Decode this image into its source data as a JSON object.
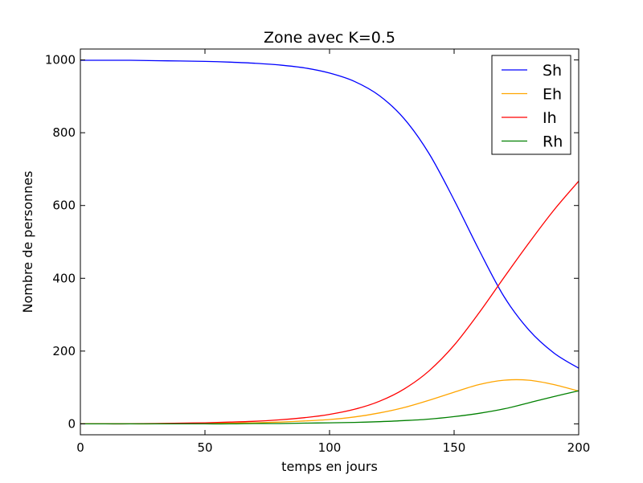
{
  "chart_data": {
    "type": "line",
    "title": "Zone avec K=0.5",
    "xlabel": "temps en jours",
    "ylabel": "Nombre de personnes",
    "xlim": [
      0,
      200
    ],
    "ylim": [
      -30,
      1030
    ],
    "xticks": [
      0,
      50,
      100,
      150,
      200
    ],
    "yticks": [
      0,
      200,
      400,
      600,
      800,
      1000
    ],
    "grid": false,
    "legend_position": "top-right",
    "x": [
      0,
      10,
      20,
      30,
      40,
      50,
      60,
      70,
      80,
      90,
      100,
      110,
      120,
      130,
      140,
      150,
      160,
      170,
      180,
      190,
      200
    ],
    "series": [
      {
        "name": "Sh",
        "color": "#0000ff",
        "values": [
          999,
          999,
          999,
          998,
          997,
          996,
          994,
          991,
          986,
          978,
          964,
          941,
          902,
          838,
          742,
          615,
          478,
          350,
          258,
          195,
          153
        ]
      },
      {
        "name": "Eh",
        "color": "#ffa500",
        "values": [
          0,
          0,
          0,
          0,
          1,
          1,
          2,
          3,
          5,
          8,
          12,
          19,
          30,
          45,
          65,
          87,
          108,
          120,
          120,
          108,
          90
        ]
      },
      {
        "name": "Ih",
        "color": "#ff0000",
        "values": [
          0,
          0,
          0,
          1,
          2,
          3,
          5,
          7,
          11,
          17,
          26,
          40,
          62,
          96,
          146,
          216,
          305,
          402,
          497,
          587,
          667
        ]
      },
      {
        "name": "Rh",
        "color": "#008000",
        "values": [
          0,
          0,
          0,
          0,
          0,
          0,
          0,
          1,
          1,
          2,
          3,
          4,
          6,
          9,
          13,
          20,
          29,
          41,
          58,
          75,
          91
        ]
      }
    ]
  }
}
